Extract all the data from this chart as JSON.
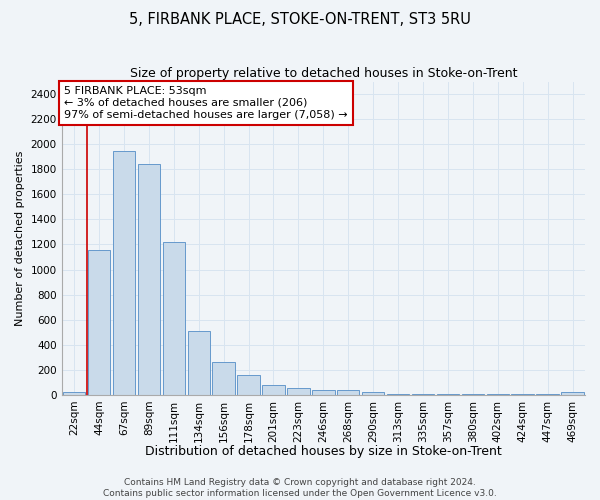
{
  "title": "5, FIRBANK PLACE, STOKE-ON-TRENT, ST3 5RU",
  "subtitle": "Size of property relative to detached houses in Stoke-on-Trent",
  "xlabel": "Distribution of detached houses by size in Stoke-on-Trent",
  "ylabel": "Number of detached properties",
  "categories": [
    "22sqm",
    "44sqm",
    "67sqm",
    "89sqm",
    "111sqm",
    "134sqm",
    "156sqm",
    "178sqm",
    "201sqm",
    "223sqm",
    "246sqm",
    "268sqm",
    "290sqm",
    "313sqm",
    "335sqm",
    "357sqm",
    "380sqm",
    "402sqm",
    "424sqm",
    "447sqm",
    "469sqm"
  ],
  "values": [
    25,
    1155,
    1950,
    1840,
    1220,
    510,
    265,
    155,
    80,
    55,
    38,
    38,
    18,
    8,
    8,
    5,
    5,
    5,
    3,
    3,
    18
  ],
  "bar_color": "#c9daea",
  "bar_edge_color": "#6699cc",
  "vline_x": 0.5,
  "vline_color": "#cc0000",
  "annotation_text": "5 FIRBANK PLACE: 53sqm\n← 3% of detached houses are smaller (206)\n97% of semi-detached houses are larger (7,058) →",
  "annotation_box_color": "#ffffff",
  "annotation_box_edge": "#cc0000",
  "ylim": [
    0,
    2500
  ],
  "yticks": [
    0,
    200,
    400,
    600,
    800,
    1000,
    1200,
    1400,
    1600,
    1800,
    2000,
    2200,
    2400
  ],
  "footer_line1": "Contains HM Land Registry data © Crown copyright and database right 2024.",
  "footer_line2": "Contains public sector information licensed under the Open Government Licence v3.0.",
  "bg_color": "#f0f4f8",
  "grid_color": "#d8e4f0",
  "title_fontsize": 10.5,
  "subtitle_fontsize": 9,
  "ylabel_fontsize": 8,
  "xlabel_fontsize": 9,
  "tick_fontsize": 7.5,
  "annotation_fontsize": 8,
  "footer_fontsize": 6.5
}
